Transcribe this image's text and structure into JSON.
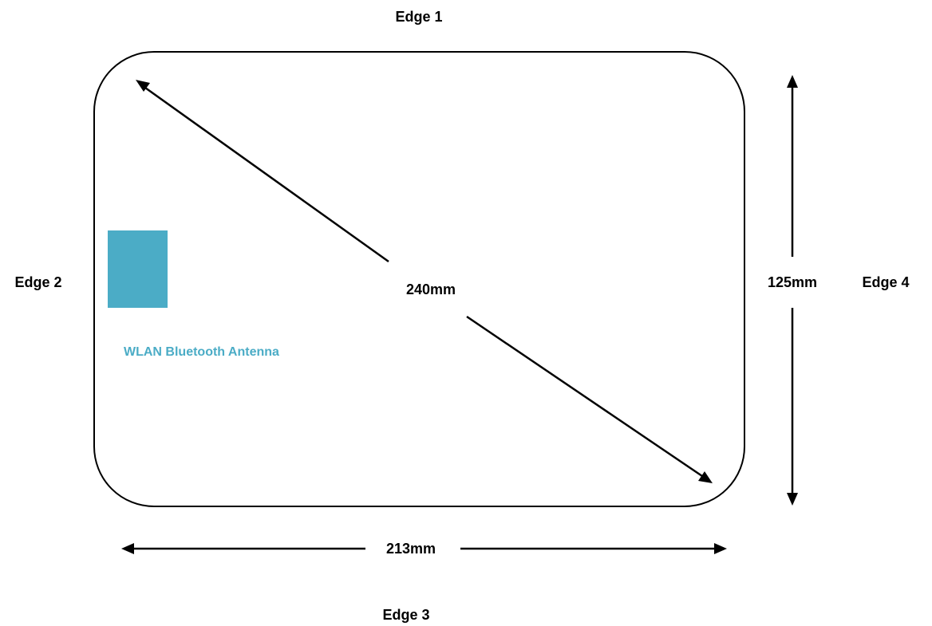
{
  "edges": {
    "top": "Edge 1",
    "left": "Edge 2",
    "bottom": "Edge 3",
    "right": "Edge 4"
  },
  "dimensions": {
    "diagonal": "240mm",
    "width": "213mm",
    "height": "125mm"
  },
  "antenna": {
    "label": "WLAN Bluetooth Antenna",
    "color": "#4BACC6"
  },
  "colors": {
    "outline": "#000000",
    "arrow": "#000000",
    "background": "#ffffff"
  }
}
